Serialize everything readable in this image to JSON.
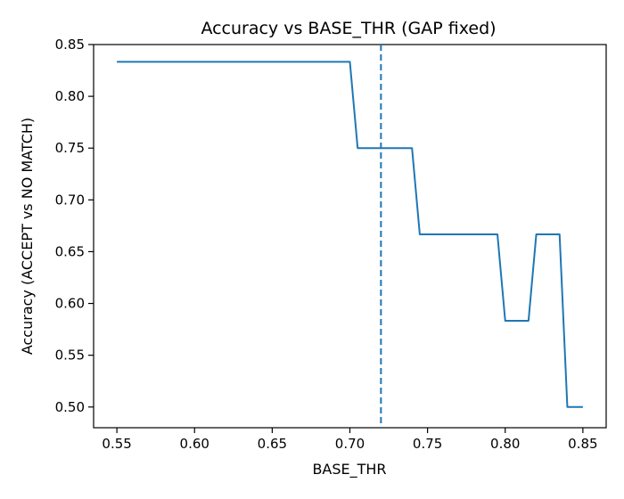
{
  "chart_data": {
    "type": "line",
    "title": "Accuracy vs BASE_THR (GAP fixed)",
    "xlabel": "BASE_THR",
    "ylabel": "Accuracy (ACCEPT vs NO MATCH)",
    "xlim": [
      0.535,
      0.865
    ],
    "ylim": [
      0.48,
      0.85
    ],
    "xticks": [
      "0.55",
      "0.60",
      "0.65",
      "0.70",
      "0.75",
      "0.80",
      "0.85"
    ],
    "yticks": [
      "0.50",
      "0.55",
      "0.60",
      "0.65",
      "0.70",
      "0.75",
      "0.80",
      "0.85"
    ],
    "grid": false,
    "series": [
      {
        "color": "#1f77b4",
        "x": [
          0.55,
          0.555,
          0.56,
          0.565,
          0.57,
          0.575,
          0.58,
          0.585,
          0.59,
          0.595,
          0.6,
          0.605,
          0.61,
          0.615,
          0.62,
          0.625,
          0.63,
          0.635,
          0.64,
          0.645,
          0.65,
          0.655,
          0.66,
          0.665,
          0.67,
          0.675,
          0.68,
          0.685,
          0.69,
          0.695,
          0.7,
          0.705,
          0.71,
          0.715,
          0.72,
          0.725,
          0.73,
          0.735,
          0.74,
          0.745,
          0.75,
          0.755,
          0.76,
          0.765,
          0.77,
          0.775,
          0.78,
          0.785,
          0.79,
          0.795,
          0.8,
          0.805,
          0.81,
          0.815,
          0.82,
          0.825,
          0.83,
          0.835,
          0.84,
          0.845,
          0.85
        ],
        "y": [
          0.8333,
          0.8333,
          0.8333,
          0.8333,
          0.8333,
          0.8333,
          0.8333,
          0.8333,
          0.8333,
          0.8333,
          0.8333,
          0.8333,
          0.8333,
          0.8333,
          0.8333,
          0.8333,
          0.8333,
          0.8333,
          0.8333,
          0.8333,
          0.8333,
          0.8333,
          0.8333,
          0.8333,
          0.8333,
          0.8333,
          0.8333,
          0.8333,
          0.8333,
          0.8333,
          0.8333,
          0.75,
          0.75,
          0.75,
          0.75,
          0.75,
          0.75,
          0.75,
          0.75,
          0.6667,
          0.6667,
          0.6667,
          0.6667,
          0.6667,
          0.6667,
          0.6667,
          0.6667,
          0.6667,
          0.6667,
          0.6667,
          0.5833,
          0.5833,
          0.5833,
          0.5833,
          0.6667,
          0.6667,
          0.6667,
          0.6667,
          0.5,
          0.5,
          0.5
        ]
      }
    ],
    "reference_lines": [
      {
        "orientation": "vertical",
        "x": 0.72,
        "style": "dashed",
        "color": "#1f77b4"
      }
    ]
  }
}
